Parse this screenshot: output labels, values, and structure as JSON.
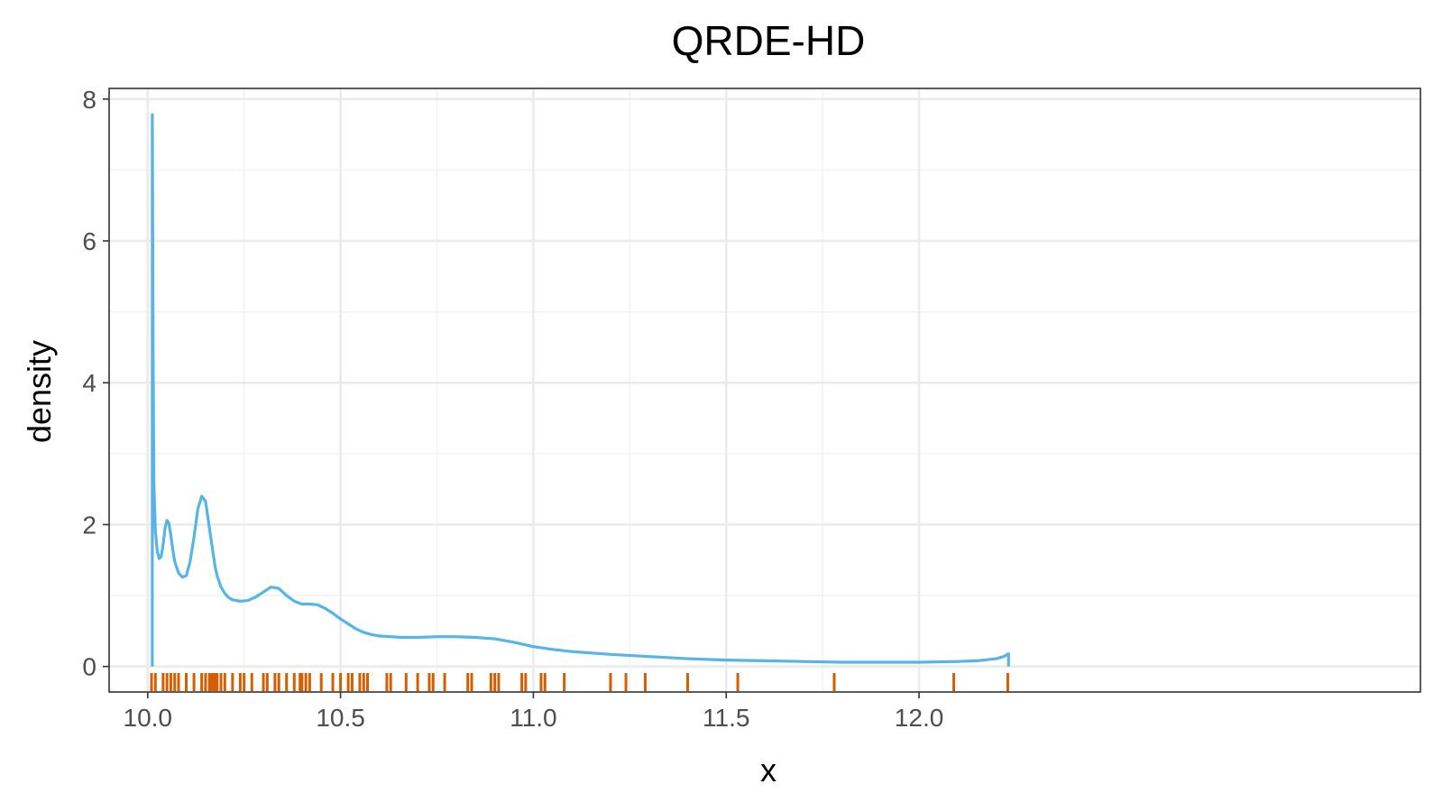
{
  "chart_data": {
    "type": "line",
    "title": "QRDE-HD",
    "xlabel": "x",
    "ylabel": "density",
    "xlim": [
      9.9,
      13.3
    ],
    "ylim": [
      -0.36,
      8.15
    ],
    "x_ticks": [
      10.0,
      10.5,
      11.0,
      11.5,
      12.0
    ],
    "x_tick_labels": [
      "10.0",
      "10.5",
      "11.0",
      "11.5",
      "12.0"
    ],
    "y_ticks": [
      0,
      2,
      4,
      6,
      8
    ],
    "y_tick_labels": [
      "0",
      "2",
      "4",
      "6",
      "8"
    ],
    "grid": true,
    "series": [
      {
        "color": "#56B4E9",
        "x": [
          10.012,
          10.012,
          10.014,
          10.016,
          10.02,
          10.025,
          10.03,
          10.035,
          10.04,
          10.045,
          10.05,
          10.055,
          10.06,
          10.065,
          10.07,
          10.08,
          10.09,
          10.1,
          10.11,
          10.12,
          10.13,
          10.14,
          10.15,
          10.16,
          10.17,
          10.175,
          10.18,
          10.19,
          10.2,
          10.21,
          10.22,
          10.24,
          10.26,
          10.28,
          10.3,
          10.32,
          10.34,
          10.36,
          10.38,
          10.4,
          10.42,
          10.44,
          10.46,
          10.48,
          10.5,
          10.52,
          10.54,
          10.56,
          10.58,
          10.6,
          10.63,
          10.66,
          10.7,
          10.75,
          10.8,
          10.85,
          10.9,
          10.95,
          11.0,
          11.05,
          11.1,
          11.2,
          11.3,
          11.4,
          11.5,
          11.6,
          11.7,
          11.8,
          11.9,
          12.0,
          12.1,
          12.15,
          12.2,
          12.22,
          12.232,
          12.232
        ],
        "y": [
          0.0,
          7.78,
          4.5,
          2.6,
          1.9,
          1.62,
          1.52,
          1.55,
          1.72,
          1.95,
          2.06,
          2.02,
          1.85,
          1.65,
          1.48,
          1.32,
          1.26,
          1.28,
          1.48,
          1.82,
          2.22,
          2.4,
          2.33,
          1.95,
          1.58,
          1.4,
          1.28,
          1.12,
          1.03,
          0.97,
          0.94,
          0.92,
          0.93,
          0.98,
          1.05,
          1.12,
          1.1,
          1.0,
          0.92,
          0.88,
          0.88,
          0.87,
          0.82,
          0.75,
          0.67,
          0.6,
          0.53,
          0.48,
          0.45,
          0.43,
          0.42,
          0.41,
          0.41,
          0.42,
          0.42,
          0.41,
          0.39,
          0.34,
          0.28,
          0.24,
          0.21,
          0.17,
          0.14,
          0.11,
          0.09,
          0.08,
          0.07,
          0.06,
          0.06,
          0.06,
          0.07,
          0.08,
          0.11,
          0.14,
          0.18,
          0.0
        ]
      }
    ],
    "rug": {
      "color": "#D55E00",
      "values": [
        10.01,
        10.02,
        10.04,
        10.05,
        10.06,
        10.07,
        10.08,
        10.1,
        10.12,
        10.14,
        10.15,
        10.16,
        10.165,
        10.17,
        10.175,
        10.18,
        10.19,
        10.2,
        10.22,
        10.24,
        10.25,
        10.27,
        10.3,
        10.31,
        10.33,
        10.34,
        10.36,
        10.38,
        10.395,
        10.4,
        10.41,
        10.42,
        10.45,
        10.48,
        10.5,
        10.52,
        10.53,
        10.55,
        10.56,
        10.57,
        10.62,
        10.63,
        10.67,
        10.7,
        10.73,
        10.74,
        10.77,
        10.83,
        10.84,
        10.89,
        10.9,
        10.91,
        10.97,
        10.98,
        11.02,
        11.03,
        11.08,
        11.2,
        11.24,
        11.29,
        11.4,
        11.53,
        11.78,
        12.09,
        12.23
      ]
    }
  }
}
